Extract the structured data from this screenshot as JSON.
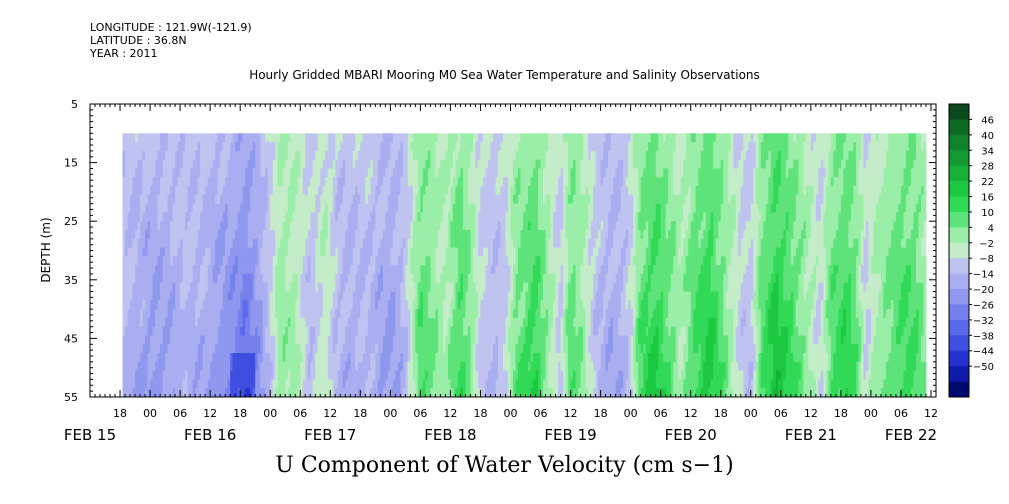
{
  "header": {
    "longitude": "LONGITUDE : 121.9W(-121.9)",
    "latitude": "LATITUDE : 36.8N",
    "year": "YEAR : 2011",
    "title": "Hourly Gridded MBARI Mooring M0 Sea Water Temperature and Salinity Observations"
  },
  "footer": {
    "variable_title": "U Component of Water Velocity (cm s−1)"
  },
  "chart_data": {
    "type": "heatmap",
    "title": "Hourly Gridded MBARI Mooring M0 Sea Water Temperature and Salinity Observations",
    "xlabel": "",
    "ylabel": "DEPTH (m)",
    "variable": "U Component of Water Velocity (cm s−1)",
    "y_ticks": [
      5,
      15,
      25,
      35,
      45,
      55
    ],
    "ylim": [
      5,
      55
    ],
    "y_inverted": true,
    "data_depth_range": [
      10,
      55
    ],
    "x_start_hours": 12,
    "x_end_hours": 181,
    "data_start_hours": 18.5,
    "data_end_hours": 179,
    "x_hour_ticks": [
      {
        "h": 18,
        "label": "18"
      },
      {
        "h": 24,
        "label": "00"
      },
      {
        "h": 30,
        "label": "06"
      },
      {
        "h": 36,
        "label": "12"
      },
      {
        "h": 42,
        "label": "18"
      },
      {
        "h": 48,
        "label": "00"
      },
      {
        "h": 54,
        "label": "06"
      },
      {
        "h": 60,
        "label": "12"
      },
      {
        "h": 66,
        "label": "18"
      },
      {
        "h": 72,
        "label": "00"
      },
      {
        "h": 78,
        "label": "06"
      },
      {
        "h": 84,
        "label": "12"
      },
      {
        "h": 90,
        "label": "18"
      },
      {
        "h": 96,
        "label": "00"
      },
      {
        "h": 102,
        "label": "06"
      },
      {
        "h": 108,
        "label": "12"
      },
      {
        "h": 114,
        "label": "18"
      },
      {
        "h": 120,
        "label": "00"
      },
      {
        "h": 126,
        "label": "06"
      },
      {
        "h": 132,
        "label": "12"
      },
      {
        "h": 138,
        "label": "18"
      },
      {
        "h": 144,
        "label": "00"
      },
      {
        "h": 150,
        "label": "06"
      },
      {
        "h": 156,
        "label": "12"
      },
      {
        "h": 162,
        "label": "18"
      },
      {
        "h": 168,
        "label": "00"
      },
      {
        "h": 174,
        "label": "06"
      },
      {
        "h": 180,
        "label": "12"
      }
    ],
    "x_date_labels": [
      {
        "h": 12,
        "label": "FEB 15"
      },
      {
        "h": 36,
        "label": "FEB 16"
      },
      {
        "h": 60,
        "label": "FEB 17"
      },
      {
        "h": 84,
        "label": "FEB 18"
      },
      {
        "h": 108,
        "label": "FEB 19"
      },
      {
        "h": 132,
        "label": "FEB 20"
      },
      {
        "h": 156,
        "label": "FEB 21"
      },
      {
        "h": 176,
        "label": "FEB 22"
      }
    ],
    "colorbar": {
      "levels": [
        46,
        40,
        34,
        28,
        22,
        16,
        10,
        4,
        -2,
        -8,
        -14,
        -20,
        -26,
        -32,
        -38,
        -44,
        -50
      ],
      "colors": [
        "#0a4a1c",
        "#0d6a23",
        "#10822a",
        "#139a31",
        "#16b238",
        "#1cc840",
        "#30d956",
        "#5ee37a",
        "#9aeea8",
        "#c4ecc8",
        "#bfc3f0",
        "#a9aef0",
        "#8f97ee",
        "#7580ec",
        "#5a69ea",
        "#3e4fe0",
        "#2433d0",
        "#0e1aa8",
        "#000a6e"
      ],
      "vmin": -50,
      "vmax": 52
    },
    "regimes": [
      {
        "h": 18.5,
        "v": -6
      },
      {
        "h": 21,
        "v": -9
      },
      {
        "h": 25,
        "v": -12
      },
      {
        "h": 28,
        "v": -10
      },
      {
        "h": 31,
        "v": -7
      },
      {
        "h": 35,
        "v": -9
      },
      {
        "h": 38,
        "v": -13
      },
      {
        "h": 41,
        "v": -16
      },
      {
        "h": 43,
        "v": -20
      },
      {
        "h": 46,
        "v": -12
      },
      {
        "h": 48,
        "v": -4
      },
      {
        "h": 50,
        "v": 6
      },
      {
        "h": 53,
        "v": 4
      },
      {
        "h": 56,
        "v": -6
      },
      {
        "h": 59,
        "v": 3
      },
      {
        "h": 61,
        "v": -5
      },
      {
        "h": 64,
        "v": -9
      },
      {
        "h": 67,
        "v": -6
      },
      {
        "h": 70,
        "v": -10
      },
      {
        "h": 72,
        "v": -12
      },
      {
        "h": 75,
        "v": -6
      },
      {
        "h": 78,
        "v": 12
      },
      {
        "h": 80,
        "v": 9
      },
      {
        "h": 83,
        "v": 3
      },
      {
        "h": 86,
        "v": 14
      },
      {
        "h": 88,
        "v": 8
      },
      {
        "h": 90,
        "v": -3
      },
      {
        "h": 93,
        "v": -6
      },
      {
        "h": 95,
        "v": -4
      },
      {
        "h": 97,
        "v": 9
      },
      {
        "h": 99,
        "v": 12
      },
      {
        "h": 101,
        "v": 16
      },
      {
        "h": 104,
        "v": 4
      },
      {
        "h": 106,
        "v": -4
      },
      {
        "h": 108,
        "v": 11
      },
      {
        "h": 110,
        "v": 7
      },
      {
        "h": 113,
        "v": -5
      },
      {
        "h": 116,
        "v": -9
      },
      {
        "h": 118,
        "v": -8
      },
      {
        "h": 120,
        "v": -3
      },
      {
        "h": 122,
        "v": 12
      },
      {
        "h": 125,
        "v": 17
      },
      {
        "h": 128,
        "v": 10
      },
      {
        "h": 130,
        "v": 4
      },
      {
        "h": 133,
        "v": 13
      },
      {
        "h": 136,
        "v": 18
      },
      {
        "h": 139,
        "v": 8
      },
      {
        "h": 142,
        "v": -3
      },
      {
        "h": 144,
        "v": -5
      },
      {
        "h": 146,
        "v": 11
      },
      {
        "h": 149,
        "v": 20
      },
      {
        "h": 152,
        "v": 14
      },
      {
        "h": 155,
        "v": 6
      },
      {
        "h": 158,
        "v": -2
      },
      {
        "h": 160,
        "v": 11
      },
      {
        "h": 163,
        "v": 16
      },
      {
        "h": 165,
        "v": 11
      },
      {
        "h": 167,
        "v": -3
      },
      {
        "h": 169,
        "v": 5
      },
      {
        "h": 172,
        "v": 10
      },
      {
        "h": 175,
        "v": 14
      },
      {
        "h": 177,
        "v": 12
      },
      {
        "h": 179,
        "v": 6
      }
    ]
  }
}
